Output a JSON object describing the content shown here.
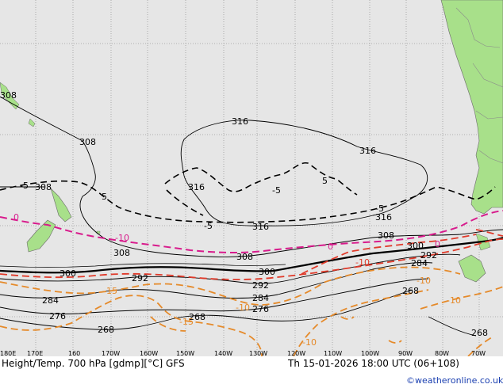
{
  "colors": {
    "ocean": "#e6e6e6",
    "land": "#a8e08a",
    "height_contour": "#000000",
    "temp_zero": "#d81b8c",
    "temp_neg5_black": "#000000",
    "temp_red": "#e03a2a",
    "temp_orange": "#e58a2a",
    "credit": "#1a3fb0"
  },
  "footer": {
    "title": "Height/Temp. 700 hPa [gdmp][°C] GFS",
    "valid": "Th 15-01-2026 18:00 UTC (06+108)",
    "credit": "©weatheronline.co.uk"
  },
  "longitude_labels": [
    "180E",
    "170E",
    "160",
    "170W",
    "160W",
    "150W",
    "140W",
    "130W",
    "120W",
    "110W",
    "100W",
    "90W",
    "80W",
    "70W"
  ],
  "height_labels": [
    "316",
    "316",
    "316",
    "316",
    "316",
    "308",
    "308",
    "308",
    "308",
    "308",
    "308",
    "300",
    "300",
    "300",
    "292",
    "292",
    "292",
    "284",
    "284",
    "284",
    "276",
    "276",
    "268",
    "268",
    "268",
    "268"
  ],
  "temp_labels": [
    "-5",
    "-5",
    "-5",
    "-5",
    "5",
    "5",
    "0",
    "0",
    "0",
    "-10",
    "-10",
    "-10",
    "-10",
    "-10",
    "-15",
    "-15",
    "-10"
  ],
  "map_features": [
    "south-america-coast",
    "new-zealand",
    "chatham-islands",
    "tierra-del-fuego"
  ]
}
